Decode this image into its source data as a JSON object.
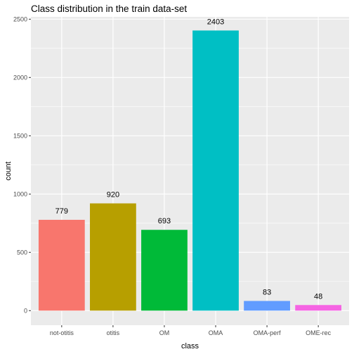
{
  "chart_data": {
    "type": "bar",
    "title": "Class distribution in the train data-set",
    "xlabel": "class",
    "ylabel": "count",
    "categories": [
      "not-otitis",
      "otitis",
      "OM",
      "OMA",
      "OMA-perf",
      "OME-rec"
    ],
    "values": [
      779,
      920,
      693,
      2403,
      83,
      48
    ],
    "data_labels": [
      "779",
      "920",
      "693",
      "2403",
      "83",
      "48"
    ],
    "colors": [
      "#F8766D",
      "#B79F00",
      "#00BA38",
      "#00BFC4",
      "#619CFF",
      "#F564E3"
    ],
    "ylim": [
      -125,
      2520
    ],
    "yticks": [
      0,
      500,
      1000,
      1500,
      2000,
      2500
    ],
    "ytick_labels": [
      "0",
      "500",
      "1000",
      "1500",
      "2000",
      "2500"
    ],
    "panel_background": "#EBEBEB",
    "grid": true,
    "legend": "none"
  }
}
